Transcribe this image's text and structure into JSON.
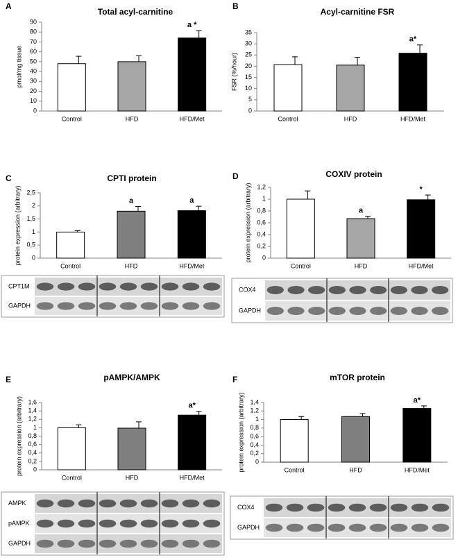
{
  "chart_data": [
    {
      "type": "bar",
      "panel": "A",
      "title": "Total acyl-carnitine",
      "y_label": "pmol/mg tissue",
      "categories": [
        "Control",
        "HFD",
        "HFD/Met"
      ],
      "values": [
        48,
        50,
        74
      ],
      "errors": [
        7.5,
        6,
        7.5
      ],
      "colors": [
        "#ffffff",
        "#a6a6a6",
        "#000000"
      ],
      "value_annotations": [
        null,
        null,
        "a *"
      ],
      "ylim": [
        0,
        90
      ],
      "yticks": [
        0,
        10,
        20,
        30,
        40,
        50,
        60,
        70,
        80,
        90
      ]
    },
    {
      "type": "bar",
      "panel": "B",
      "title": "Acyl-carnitine  FSR",
      "y_label": "FSR (%/hour)",
      "categories": [
        "Control",
        "HFD",
        "HFD/Met"
      ],
      "values": [
        20.7,
        20.5,
        25.8
      ],
      "errors": [
        3.5,
        3.5,
        3.7
      ],
      "colors": [
        "#ffffff",
        "#a6a6a6",
        "#000000"
      ],
      "value_annotations": [
        null,
        null,
        "a*"
      ],
      "ylim": [
        0,
        35
      ],
      "yticks": [
        0,
        5,
        10,
        15,
        20,
        25,
        30,
        35
      ]
    },
    {
      "type": "bar",
      "panel": "C",
      "title": "CPTI protein",
      "y_label": "protein expression (arbitrary)",
      "categories": [
        "Control",
        "HFD",
        "HFD/Met"
      ],
      "values": [
        1.0,
        1.8,
        1.82
      ],
      "errors": [
        0.05,
        0.18,
        0.17
      ],
      "colors": [
        "#ffffff",
        "#7f7f7f",
        "#000000"
      ],
      "value_annotations": [
        null,
        "a",
        "a"
      ],
      "ylim": [
        0,
        2.5
      ],
      "yticks": [
        0,
        {
          "value": 0.5,
          "label": "0,5"
        },
        1,
        {
          "value": 1.5,
          "label": "1,5"
        },
        2,
        {
          "value": 2.5,
          "label": "2,5"
        }
      ],
      "blot_labels": [
        "CPT1M",
        "GAPDH"
      ]
    },
    {
      "type": "bar",
      "panel": "D",
      "title": "COXIV protein",
      "y_label": "protein expression (arbitrary)",
      "categories": [
        "Control",
        "HFD",
        "HFD/Met"
      ],
      "values": [
        1.0,
        0.67,
        0.99
      ],
      "errors": [
        0.14,
        0.04,
        0.08
      ],
      "colors": [
        "#ffffff",
        "#a6a6a6",
        "#000000"
      ],
      "value_annotations": [
        null,
        "a",
        "*"
      ],
      "ylim": [
        0,
        1.2
      ],
      "yticks": [
        0,
        {
          "value": 0.2,
          "label": "0,2"
        },
        {
          "value": 0.4,
          "label": "0,4"
        },
        {
          "value": 0.6,
          "label": "0,6"
        },
        {
          "value": 0.8,
          "label": "0,8"
        },
        1,
        {
          "value": 1.2,
          "label": "1,2"
        }
      ],
      "blot_labels": [
        "COX4",
        "GAPDH"
      ]
    },
    {
      "type": "bar",
      "panel": "E",
      "title": "pAMPK/AMPK",
      "y_label": "protein expression (arbitrary)",
      "categories": [
        "Control",
        "HFD",
        "HFD/Met"
      ],
      "values": [
        1.0,
        0.99,
        1.3
      ],
      "errors": [
        0.07,
        0.15,
        0.09
      ],
      "colors": [
        "#ffffff",
        "#7f7f7f",
        "#000000"
      ],
      "value_annotations": [
        null,
        null,
        "a*"
      ],
      "ylim": [
        0,
        1.6
      ],
      "yticks": [
        0,
        {
          "value": 0.2,
          "label": "0,2"
        },
        {
          "value": 0.4,
          "label": "0,4"
        },
        {
          "value": 0.6,
          "label": "0,6"
        },
        {
          "value": 0.8,
          "label": "0,8"
        },
        1,
        {
          "value": 1.2,
          "label": "1,2"
        },
        {
          "value": 1.4,
          "label": "1,4"
        },
        {
          "value": 1.6,
          "label": "1,6"
        }
      ],
      "blot_labels": [
        "AMPK",
        "pAMPK",
        "GAPDH"
      ]
    },
    {
      "type": "bar",
      "panel": "F",
      "title": "mTOR protein",
      "y_label": "protein expression (arbitrary)",
      "categories": [
        "Control",
        "HFD",
        "HFD/Met"
      ],
      "values": [
        1.0,
        1.07,
        1.26
      ],
      "errors": [
        0.07,
        0.07,
        0.06
      ],
      "colors": [
        "#ffffff",
        "#7f7f7f",
        "#000000"
      ],
      "value_annotations": [
        null,
        null,
        "a*"
      ],
      "ylim": [
        0,
        1.4
      ],
      "yticks": [
        0,
        {
          "value": 0.2,
          "label": "0,2"
        },
        {
          "value": 0.4,
          "label": "0,4"
        },
        {
          "value": 0.6,
          "label": "0,6"
        },
        {
          "value": 0.8,
          "label": "0,8"
        },
        1,
        {
          "value": 1.2,
          "label": "1,2"
        },
        {
          "value": 1.4,
          "label": "1,4"
        }
      ],
      "blot_labels": [
        "COX4",
        "GAPDH"
      ]
    }
  ]
}
